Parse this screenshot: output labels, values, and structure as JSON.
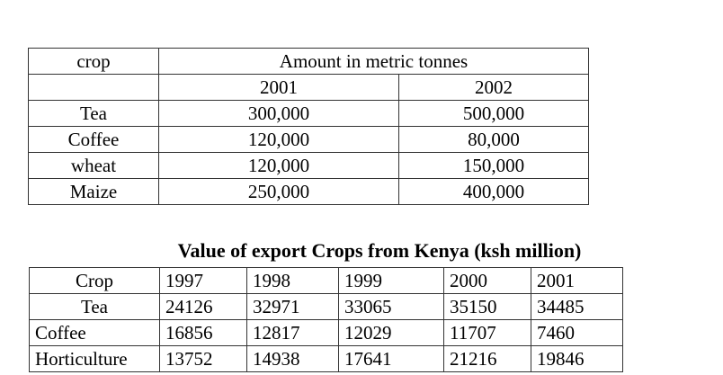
{
  "table1": {
    "header_crop": "crop",
    "header_amount": "Amount in metric tonnes",
    "years": [
      "2001",
      "2002"
    ],
    "rows": [
      {
        "crop": "Tea",
        "values": [
          "300,000",
          "500,000"
        ]
      },
      {
        "crop": "Coffee",
        "values": [
          "120,000",
          "80,000"
        ]
      },
      {
        "crop": "wheat",
        "values": [
          "120,000",
          "150,000"
        ]
      },
      {
        "crop": "Maize",
        "values": [
          "250,000",
          "400,000"
        ]
      }
    ]
  },
  "table2": {
    "title": "Value of export Crops from Kenya (ksh million)",
    "header": [
      "Crop",
      "1997",
      "1998",
      "1999",
      "2000",
      "2001"
    ],
    "rows": [
      [
        "Tea",
        "24126",
        "32971",
        "33065",
        "35150",
        "34485"
      ],
      [
        "Coffee",
        "16856",
        "12817",
        "12029",
        "11707",
        "7460"
      ],
      [
        "Horticulture",
        "13752",
        "14938",
        "17641",
        "21216",
        "19846"
      ]
    ]
  }
}
